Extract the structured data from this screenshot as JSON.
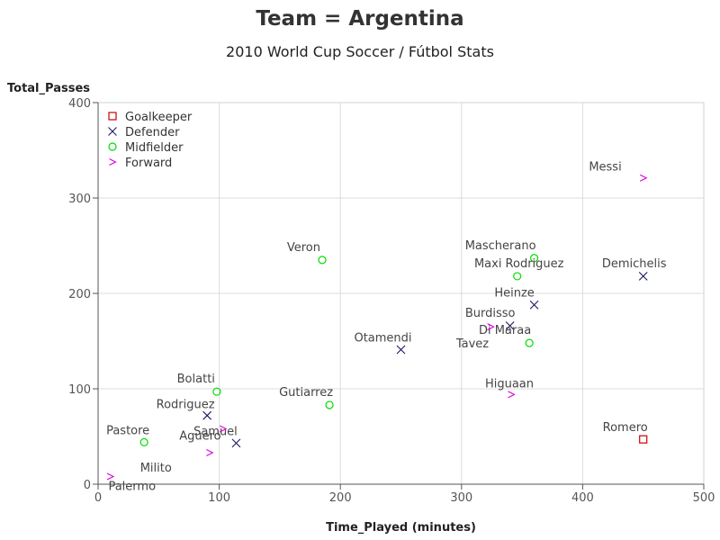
{
  "chart_data": {
    "type": "scatter",
    "title": "Team = Argentina",
    "subtitle": "2010 World Cup Soccer / Fútbol Stats",
    "xlabel": "Time_Played (minutes)",
    "ylabel": "Total_Passes",
    "xlim": [
      0,
      500
    ],
    "ylim": [
      0,
      400
    ],
    "xticks": [
      0,
      100,
      200,
      300,
      400,
      500
    ],
    "yticks": [
      0,
      100,
      200,
      300,
      400
    ],
    "grid": true,
    "legend_position": "top-left",
    "series": [
      {
        "name": "Goalkeeper",
        "marker": "square",
        "color": "#cc0000",
        "points": [
          {
            "label": "Romero",
            "x": 450,
            "y": 47
          }
        ]
      },
      {
        "name": "Defender",
        "marker": "x",
        "color": "#1a1a66",
        "points": [
          {
            "label": "Demichelis",
            "x": 450,
            "y": 218
          },
          {
            "label": "Heinze",
            "x": 360,
            "y": 188
          },
          {
            "label": "Burdisso",
            "x": 340,
            "y": 166
          },
          {
            "label": "Otamendi",
            "x": 250,
            "y": 141
          },
          {
            "label": "Rodriguez",
            "x": 90,
            "y": 72
          },
          {
            "label": "Samuel",
            "x": 114,
            "y": 43
          }
        ]
      },
      {
        "name": "Midfielder",
        "marker": "circle",
        "color": "#00dd00",
        "points": [
          {
            "label": "Mascherano",
            "x": 360,
            "y": 237
          },
          {
            "label": "Maxi Rodriguez",
            "x": 346,
            "y": 218
          },
          {
            "label": "Di Maraa",
            "x": 356,
            "y": 148
          },
          {
            "label": "Veron",
            "x": 185,
            "y": 235
          },
          {
            "label": "Bolatti",
            "x": 98,
            "y": 97
          },
          {
            "label": "Gutiarrez",
            "x": 191,
            "y": 83
          },
          {
            "label": "Pastore",
            "x": 38,
            "y": 44
          }
        ]
      },
      {
        "name": "Forward",
        "marker": "chevron",
        "color": "#dd00dd",
        "points": [
          {
            "label": "Messi",
            "x": 450,
            "y": 321
          },
          {
            "label": "Higuaan",
            "x": 341,
            "y": 94
          },
          {
            "label": "Tavez",
            "x": 324,
            "y": 165
          },
          {
            "label": "Aguero",
            "x": 103,
            "y": 58
          },
          {
            "label": "Milito",
            "x": 92,
            "y": 33
          },
          {
            "label": "Palermo",
            "x": 10,
            "y": 8
          }
        ]
      }
    ]
  }
}
